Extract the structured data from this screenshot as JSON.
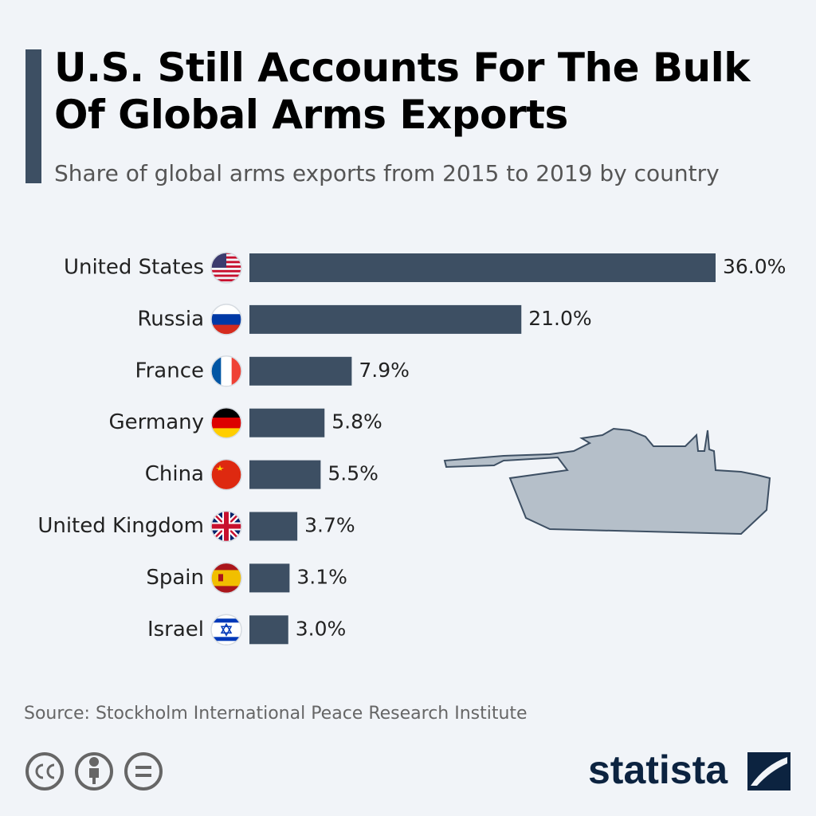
{
  "chart_data": {
    "type": "bar",
    "orientation": "horizontal",
    "title": "U.S. Still Accounts For The Bulk Of Global Arms Exports",
    "subtitle": "Share of global arms exports from 2015 to 2019 by country",
    "categories": [
      "United States",
      "Russia",
      "France",
      "Germany",
      "China",
      "United Kingdom",
      "Spain",
      "Israel"
    ],
    "values": [
      36.0,
      21.0,
      7.9,
      5.8,
      5.5,
      3.7,
      3.1,
      3.0
    ],
    "value_labels": [
      "36.0%",
      "21.0%",
      "7.9%",
      "5.8%",
      "5.5%",
      "3.7%",
      "3.1%",
      "3.0%"
    ],
    "color": "#3d4f63",
    "source": "Source: Stockholm International Peace Research Institute",
    "brand": "statista"
  }
}
